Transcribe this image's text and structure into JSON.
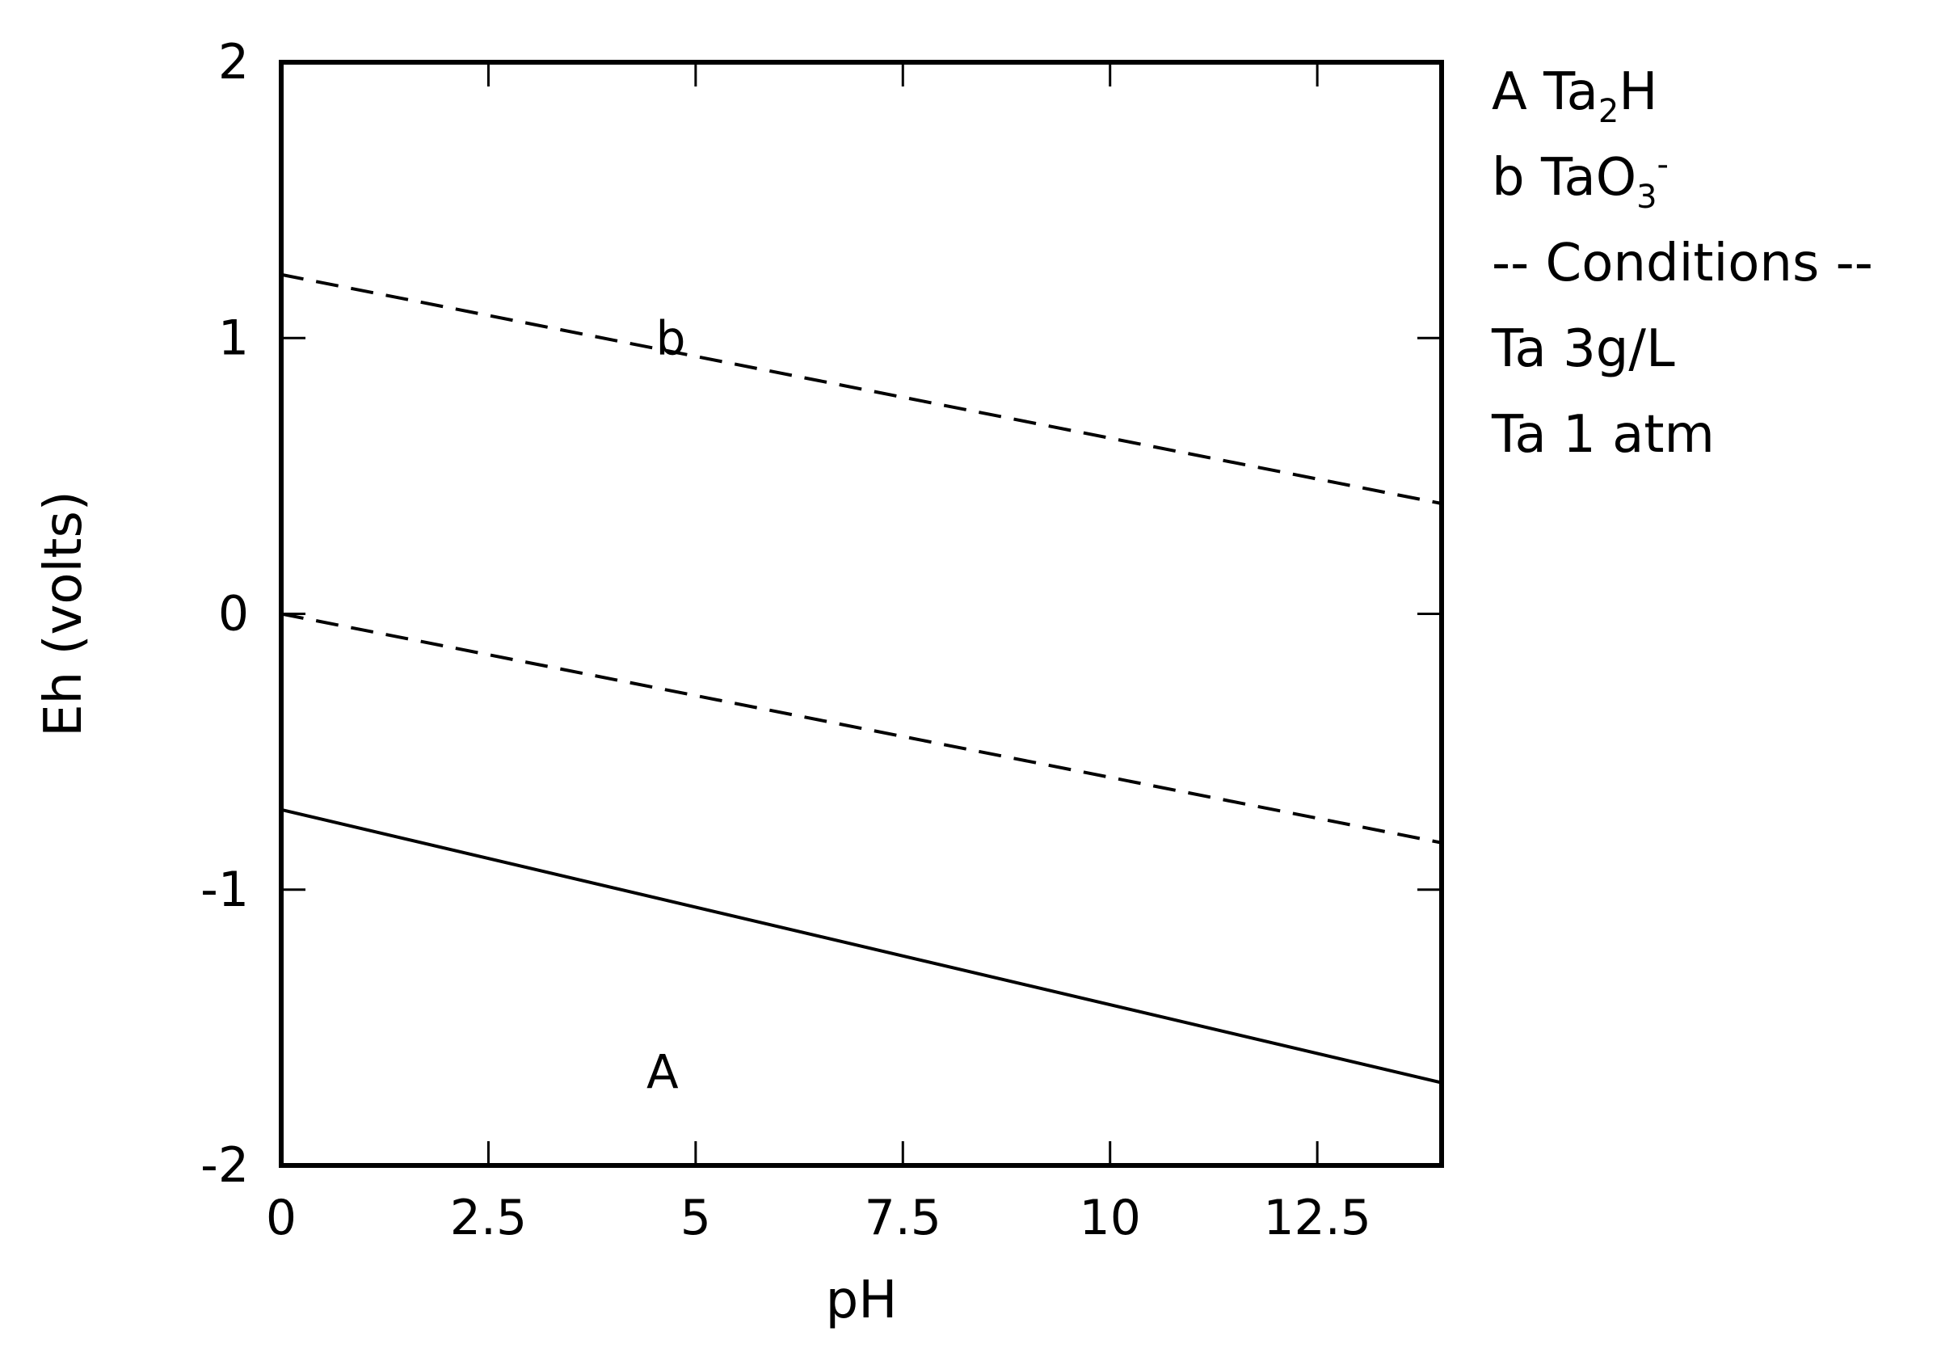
{
  "chart_data": {
    "type": "line",
    "title": "",
    "xlabel": "pH",
    "ylabel": "Eh (volts)",
    "xlim": [
      0,
      14
    ],
    "ylim": [
      -2,
      2
    ],
    "grid": false,
    "x_ticks": [
      {
        "value": 0,
        "label": "0"
      },
      {
        "value": 2.5,
        "label": "2.5"
      },
      {
        "value": 5,
        "label": "5"
      },
      {
        "value": 7.5,
        "label": "7.5"
      },
      {
        "value": 10,
        "label": "10"
      },
      {
        "value": 12.5,
        "label": "12.5"
      }
    ],
    "y_ticks": [
      {
        "value": -2,
        "label": "-2"
      },
      {
        "value": -1,
        "label": "-1"
      },
      {
        "value": 0,
        "label": "0"
      },
      {
        "value": 1,
        "label": "1"
      },
      {
        "value": 2,
        "label": "2"
      }
    ],
    "series": [
      {
        "style": "dashed",
        "color": "#000000",
        "x": [
          0,
          14
        ],
        "y": [
          1.23,
          0.4
        ]
      },
      {
        "style": "dashed",
        "color": "#000000",
        "x": [
          0,
          14
        ],
        "y": [
          0.0,
          -0.83
        ]
      },
      {
        "style": "solid",
        "color": "#000000",
        "x": [
          0,
          14
        ],
        "y": [
          -0.71,
          -1.7
        ]
      }
    ],
    "region_labels": [
      {
        "text": "b",
        "x": 4.7,
        "y": 0.94
      },
      {
        "text": "A",
        "x": 4.6,
        "y": -1.72
      }
    ],
    "legend": {
      "placement": "right",
      "entries": [
        {
          "parts": [
            {
              "text": "A Ta"
            },
            {
              "text": "2",
              "sub": true
            },
            {
              "text": "H"
            }
          ]
        },
        {
          "parts": [
            {
              "text": "b TaO"
            },
            {
              "text": "3",
              "sub": true
            },
            {
              "text": "-",
              "sup": true
            }
          ]
        },
        {
          "parts": [
            {
              "text": "-- Conditions --"
            }
          ]
        },
        {
          "parts": [
            {
              "text": "Ta 3g/L"
            }
          ]
        },
        {
          "parts": [
            {
              "text": "Ta 1 atm"
            }
          ]
        }
      ]
    }
  }
}
